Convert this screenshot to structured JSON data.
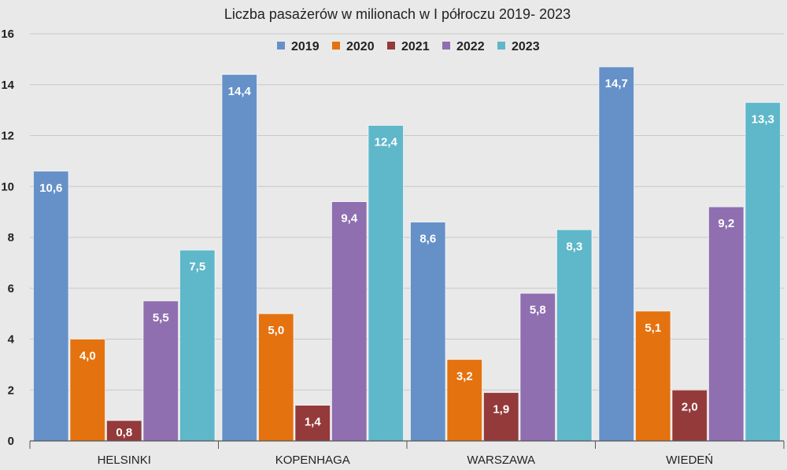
{
  "chart_data": {
    "type": "bar",
    "title": "Liczba pasażerów w milionach w I półroczu 2019- 2023",
    "xlabel": "",
    "ylabel": "",
    "ylim": [
      0,
      16
    ],
    "yticks": [
      0,
      2,
      4,
      6,
      8,
      10,
      12,
      14,
      16
    ],
    "grid": true,
    "legend_position": "top",
    "categories": [
      "HELSINKI",
      "KOPENHAGA",
      "WARSZAWA",
      "WIEDEŃ"
    ],
    "series": [
      {
        "name": "2019",
        "color": "#6591c8",
        "values": [
          10.6,
          14.4,
          8.6,
          14.7
        ],
        "labels": [
          "10,6",
          "14,4",
          "8,6",
          "14,7"
        ]
      },
      {
        "name": "2020",
        "color": "#e4720f",
        "values": [
          4.0,
          5.0,
          3.2,
          5.1
        ],
        "labels": [
          "4,0",
          "5,0",
          "3,2",
          "5,1"
        ]
      },
      {
        "name": "2021",
        "color": "#943a3a",
        "values": [
          0.8,
          1.4,
          1.9,
          2.0
        ],
        "labels": [
          "0,8",
          "1,4",
          "1,9",
          "2,0"
        ]
      },
      {
        "name": "2022",
        "color": "#8f6fb0",
        "values": [
          5.5,
          9.4,
          5.8,
          9.2
        ],
        "labels": [
          "5,5",
          "9,4",
          "5,8",
          "9,2"
        ]
      },
      {
        "name": "2023",
        "color": "#5fb7ca",
        "values": [
          7.5,
          12.4,
          8.3,
          13.3
        ],
        "labels": [
          "7,5",
          "12,4",
          "8,3",
          "13,3"
        ]
      }
    ]
  }
}
